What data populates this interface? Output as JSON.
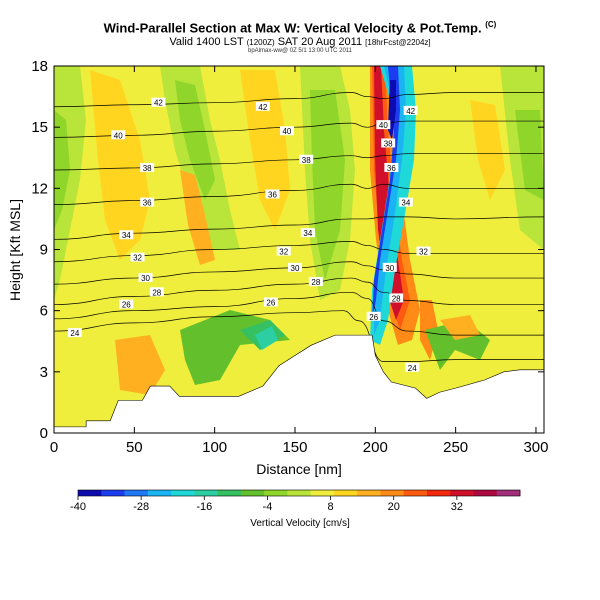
{
  "chart_data": {
    "type": "heatmap",
    "title": "Wind-Parallel Section at Max W: Vertical Velocity & Pot.Temp.",
    "title_mark": "(C)",
    "subtitle": "Valid 1400 LST",
    "subtitle_utc": "(1200Z)",
    "subtitle_date": "SAT 20 Aug 2011",
    "subtitle_fcst": "[18hrFcst@2204z]",
    "run_info": "bpAlmax-ww@ 0Z 5/1 13:00 UTC 2011",
    "xlabel": "Distance [nm]",
    "ylabel": "Height [Kft MSL]",
    "xlim": [
      0,
      305
    ],
    "ylim": [
      0,
      18
    ],
    "xticks": [
      0,
      50,
      100,
      150,
      200,
      250,
      300
    ],
    "yticks": [
      0,
      3,
      6,
      9,
      12,
      15,
      18
    ],
    "colorbar": {
      "label": "Vertical Velocity [cm/s]",
      "ticks": [
        -40,
        -28,
        -16,
        -4,
        8,
        20,
        32
      ],
      "range": [
        -40,
        44
      ],
      "colors": [
        "#0b0bb0",
        "#1c3cf0",
        "#1f78f5",
        "#1ab4f2",
        "#1fd8d8",
        "#2ccfa2",
        "#35c062",
        "#63c02c",
        "#8fd52a",
        "#b9e43a",
        "#f0ee3c",
        "#ffd520",
        "#ffb020",
        "#ff8a15",
        "#ff5b10",
        "#f4280c",
        "#d0102a",
        "#b00840",
        "#a0307a"
      ]
    },
    "terrain_profile": [
      [
        0,
        0.3
      ],
      [
        20,
        0.3
      ],
      [
        20,
        0.6
      ],
      [
        35,
        0.6
      ],
      [
        40,
        1.6
      ],
      [
        55,
        1.6
      ],
      [
        60,
        2.3
      ],
      [
        72,
        2.3
      ],
      [
        78,
        1.8
      ],
      [
        85,
        1.8
      ],
      [
        100,
        1.8
      ],
      [
        115,
        1.8
      ],
      [
        130,
        2.3
      ],
      [
        140,
        3.3
      ],
      [
        150,
        3.8
      ],
      [
        160,
        4.3
      ],
      [
        175,
        4.8
      ],
      [
        190,
        4.8
      ],
      [
        198,
        4.8
      ],
      [
        200,
        3.8
      ],
      [
        205,
        3.0
      ],
      [
        210,
        2.5
      ],
      [
        225,
        2.2
      ],
      [
        232,
        1.7
      ],
      [
        240,
        2.0
      ],
      [
        250,
        2.2
      ],
      [
        268,
        2.6
      ],
      [
        280,
        3.0
      ],
      [
        290,
        3.1
      ],
      [
        305,
        3.1
      ]
    ],
    "contours": [
      {
        "label": "24",
        "points": [
          [
            0,
            5.0
          ],
          [
            50,
            5.4
          ],
          [
            100,
            5.7
          ],
          [
            150,
            5.9
          ],
          [
            180,
            6.0
          ],
          [
            190,
            5.5
          ],
          [
            205,
            3.5
          ],
          [
            220,
            3.5
          ],
          [
            250,
            3.6
          ],
          [
            305,
            3.6
          ]
        ]
      },
      {
        "label": "26",
        "points": [
          [
            0,
            5.6
          ],
          [
            50,
            6.0
          ],
          [
            100,
            6.2
          ],
          [
            150,
            6.6
          ],
          [
            185,
            6.9
          ],
          [
            195,
            6.6
          ],
          [
            205,
            5.5
          ],
          [
            220,
            5.0
          ],
          [
            250,
            4.8
          ],
          [
            305,
            4.8
          ]
        ]
      },
      {
        "label": "28",
        "points": [
          [
            0,
            6.3
          ],
          [
            50,
            6.7
          ],
          [
            100,
            7.0
          ],
          [
            150,
            7.3
          ],
          [
            185,
            7.6
          ],
          [
            195,
            7.4
          ],
          [
            205,
            6.9
          ],
          [
            220,
            6.5
          ],
          [
            250,
            6.3
          ],
          [
            305,
            6.3
          ]
        ]
      },
      {
        "label": "30",
        "points": [
          [
            0,
            7.3
          ],
          [
            50,
            7.6
          ],
          [
            100,
            7.9
          ],
          [
            150,
            8.1
          ],
          [
            185,
            8.4
          ],
          [
            195,
            8.2
          ],
          [
            205,
            8.0
          ],
          [
            220,
            7.8
          ],
          [
            250,
            7.6
          ],
          [
            305,
            7.6
          ]
        ]
      },
      {
        "label": "32",
        "points": [
          [
            0,
            8.4
          ],
          [
            50,
            8.7
          ],
          [
            100,
            9.0
          ],
          [
            150,
            9.2
          ],
          [
            185,
            9.4
          ],
          [
            195,
            9.2
          ],
          [
            205,
            9.0
          ],
          [
            220,
            8.8
          ],
          [
            250,
            8.8
          ],
          [
            305,
            8.8
          ]
        ]
      },
      {
        "label": "34",
        "points": [
          [
            0,
            9.5
          ],
          [
            50,
            9.8
          ],
          [
            100,
            10.0
          ],
          [
            150,
            10.2
          ],
          [
            185,
            10.5
          ],
          [
            195,
            10.5
          ],
          [
            205,
            10.6
          ],
          [
            220,
            10.6
          ],
          [
            250,
            10.5
          ],
          [
            305,
            10.6
          ]
        ]
      },
      {
        "label": "36",
        "points": [
          [
            0,
            11.2
          ],
          [
            50,
            11.4
          ],
          [
            100,
            11.6
          ],
          [
            150,
            11.9
          ],
          [
            185,
            12.2
          ],
          [
            195,
            12.0
          ],
          [
            205,
            12.2
          ],
          [
            220,
            12.0
          ],
          [
            250,
            12.0
          ],
          [
            305,
            12.0
          ]
        ]
      },
      {
        "label": "38",
        "points": [
          [
            0,
            12.9
          ],
          [
            50,
            13.0
          ],
          [
            100,
            13.2
          ],
          [
            150,
            13.4
          ],
          [
            185,
            13.6
          ],
          [
            195,
            13.5
          ],
          [
            205,
            13.6
          ],
          [
            220,
            13.7
          ],
          [
            250,
            13.7
          ],
          [
            305,
            13.7
          ]
        ]
      },
      {
        "label": "40",
        "points": [
          [
            0,
            14.5
          ],
          [
            50,
            14.6
          ],
          [
            100,
            14.8
          ],
          [
            150,
            15.0
          ],
          [
            185,
            15.2
          ],
          [
            195,
            15.0
          ],
          [
            205,
            15.2
          ],
          [
            220,
            15.3
          ],
          [
            250,
            15.3
          ],
          [
            305,
            15.3
          ]
        ]
      },
      {
        "label": "42",
        "points": [
          [
            0,
            16.0
          ],
          [
            50,
            16.1
          ],
          [
            100,
            16.2
          ],
          [
            150,
            16.4
          ],
          [
            185,
            16.7
          ],
          [
            195,
            16.5
          ],
          [
            205,
            16.4
          ],
          [
            220,
            16.6
          ],
          [
            250,
            16.7
          ],
          [
            305,
            16.7
          ]
        ]
      }
    ],
    "contour_labels": [
      {
        "text": "42",
        "x": 65,
        "y": 16.2
      },
      {
        "text": "42",
        "x": 130,
        "y": 16.0
      },
      {
        "text": "40",
        "x": 40,
        "y": 14.6
      },
      {
        "text": "40",
        "x": 145,
        "y": 14.8
      },
      {
        "text": "38",
        "x": 58,
        "y": 13.0
      },
      {
        "text": "38",
        "x": 157,
        "y": 13.4
      },
      {
        "text": "36",
        "x": 58,
        "y": 11.3
      },
      {
        "text": "36",
        "x": 136,
        "y": 11.7
      },
      {
        "text": "34",
        "x": 45,
        "y": 9.7
      },
      {
        "text": "34",
        "x": 158,
        "y": 9.8
      },
      {
        "text": "32",
        "x": 52,
        "y": 8.6
      },
      {
        "text": "32",
        "x": 143,
        "y": 8.9
      },
      {
        "text": "30",
        "x": 57,
        "y": 7.6
      },
      {
        "text": "30",
        "x": 150,
        "y": 8.1
      },
      {
        "text": "28",
        "x": 64,
        "y": 6.9
      },
      {
        "text": "28",
        "x": 163,
        "y": 7.4
      },
      {
        "text": "26",
        "x": 45,
        "y": 6.3
      },
      {
        "text": "26",
        "x": 135,
        "y": 6.4
      },
      {
        "text": "24",
        "x": 13,
        "y": 4.9
      },
      {
        "text": "26",
        "x": 199,
        "y": 5.7
      },
      {
        "text": "28",
        "x": 213,
        "y": 6.6
      },
      {
        "text": "30",
        "x": 209,
        "y": 8.1
      },
      {
        "text": "32",
        "x": 230,
        "y": 8.9
      },
      {
        "text": "34",
        "x": 219,
        "y": 11.3
      },
      {
        "text": "36",
        "x": 210,
        "y": 13.0
      },
      {
        "text": "38",
        "x": 208,
        "y": 14.2
      },
      {
        "text": "40",
        "x": 205,
        "y": 15.1
      },
      {
        "text": "42",
        "x": 222,
        "y": 15.8
      },
      {
        "text": "24",
        "x": 223,
        "y": 3.2
      }
    ]
  }
}
